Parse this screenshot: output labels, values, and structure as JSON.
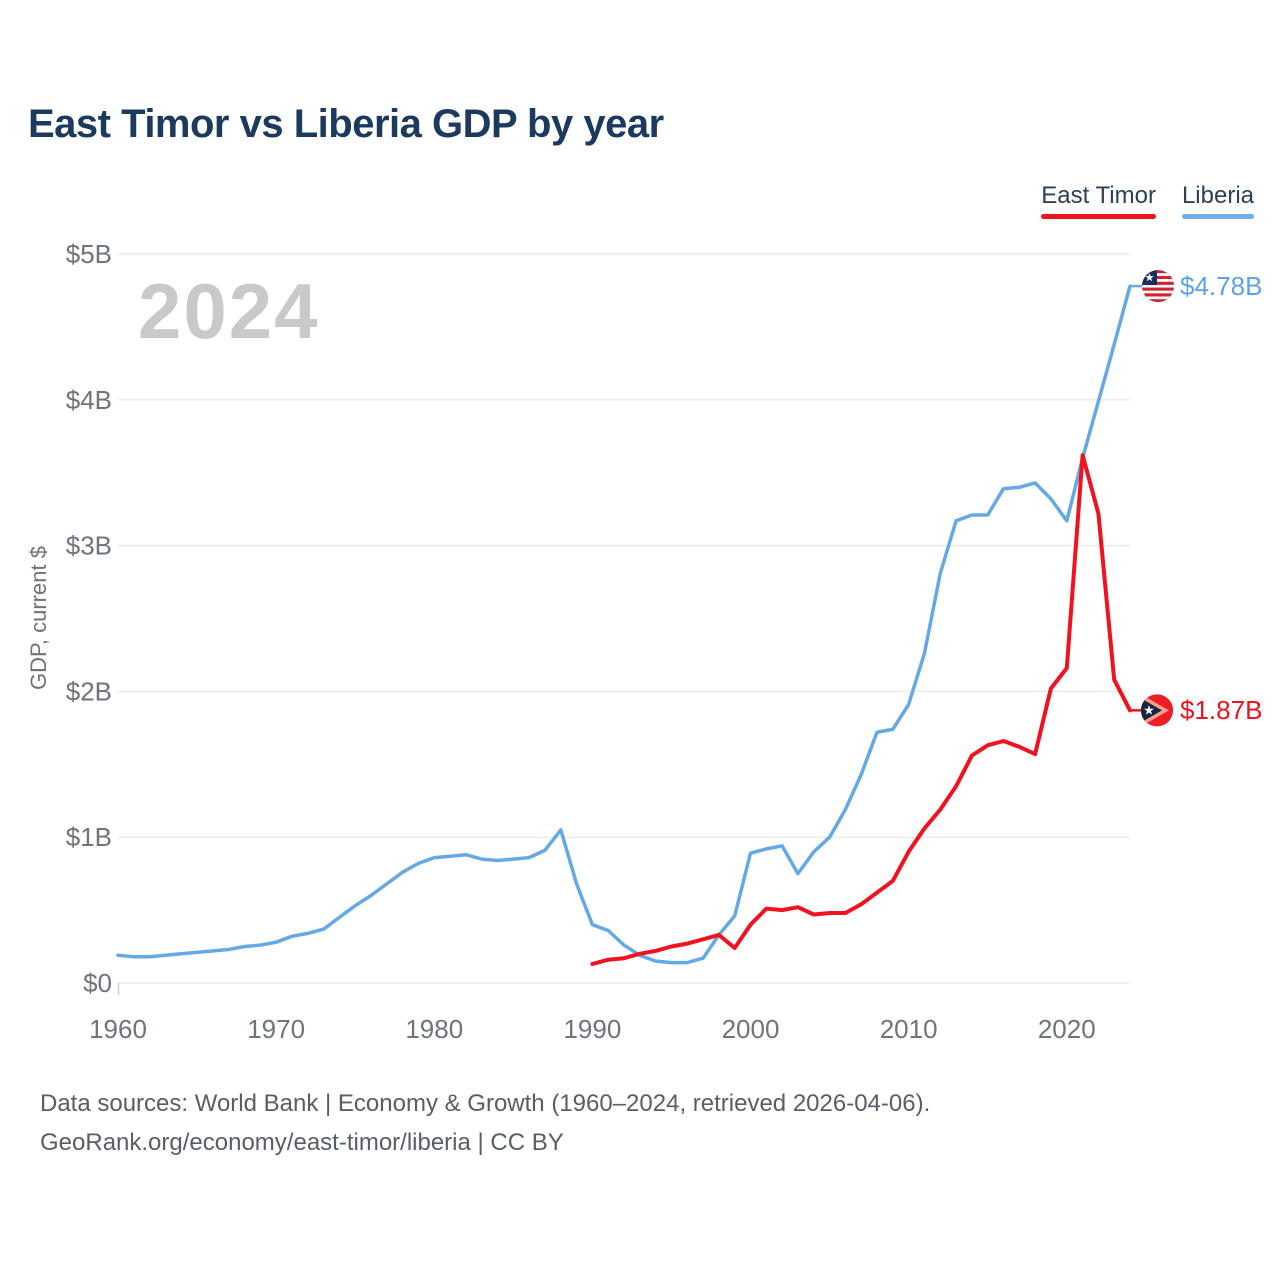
{
  "title": "East Timor vs Liberia GDP by year",
  "watermark": "2024",
  "legend": [
    {
      "label": "East Timor",
      "color": "#f2121f"
    },
    {
      "label": "Liberia",
      "color": "#6cadea"
    }
  ],
  "y_axis": {
    "title": "GDP, current $",
    "ticks": [
      "$0",
      "$1B",
      "$2B",
      "$3B",
      "$4B",
      "$5B"
    ],
    "tick_values": [
      0,
      1,
      2,
      3,
      4,
      5
    ]
  },
  "x_axis": {
    "ticks": [
      "1960",
      "1970",
      "1980",
      "1990",
      "2000",
      "2010",
      "2020"
    ],
    "tick_values": [
      1960,
      1970,
      1980,
      1990,
      2000,
      2010,
      2020
    ]
  },
  "end_labels": {
    "liberia": {
      "text": "$4.78B",
      "color": "#5da2e6"
    },
    "east_timor": {
      "text": "$1.87B",
      "color": "#f2121f"
    }
  },
  "footer": {
    "line1": "Data sources: World Bank | Economy & Growth (1960–2024, retrieved 2026-04-06).",
    "line2": "GeoRank.org/economy/east-timor/liberia | CC BY"
  },
  "chart_data": {
    "type": "line",
    "title": "East Timor vs Liberia GDP by year",
    "xlabel": "",
    "ylabel": "GDP, current $",
    "x_range": [
      1960,
      2024
    ],
    "ylim": [
      0,
      5
    ],
    "grid": true,
    "legend_position": "top-right",
    "units": "billions of current US$",
    "series": [
      {
        "name": "Liberia",
        "color": "#64a9e5",
        "x_start": 1960,
        "x_step": 1,
        "values": [
          0.19,
          0.18,
          0.18,
          0.19,
          0.2,
          0.21,
          0.22,
          0.23,
          0.25,
          0.26,
          0.28,
          0.32,
          0.34,
          0.37,
          0.45,
          0.53,
          0.6,
          0.68,
          0.76,
          0.82,
          0.86,
          0.87,
          0.88,
          0.85,
          0.84,
          0.85,
          0.86,
          0.91,
          1.05,
          0.68,
          0.4,
          0.36,
          0.26,
          0.19,
          0.15,
          0.14,
          0.14,
          0.17,
          0.33,
          0.46,
          0.89,
          0.92,
          0.94,
          0.75,
          0.9,
          1.0,
          1.19,
          1.43,
          1.72,
          1.74,
          1.91,
          2.26,
          2.81,
          3.17,
          3.21,
          3.21,
          3.39,
          3.4,
          3.43,
          3.32,
          3.17,
          3.6,
          3.99,
          4.38,
          4.78
        ],
        "end_value_label": "$4.78B"
      },
      {
        "name": "East Timor",
        "color": "#f2121f",
        "x_start": 1990,
        "x_step": 1,
        "values": [
          0.13,
          0.16,
          0.17,
          0.2,
          0.22,
          0.25,
          0.27,
          0.3,
          0.33,
          0.24,
          0.4,
          0.51,
          0.5,
          0.52,
          0.47,
          0.48,
          0.48,
          0.54,
          0.62,
          0.7,
          0.9,
          1.06,
          1.19,
          1.35,
          1.56,
          1.63,
          1.66,
          1.62,
          1.57,
          2.02,
          2.16,
          3.62,
          3.22,
          2.08,
          1.87
        ],
        "end_value_label": "$1.87B"
      }
    ]
  }
}
